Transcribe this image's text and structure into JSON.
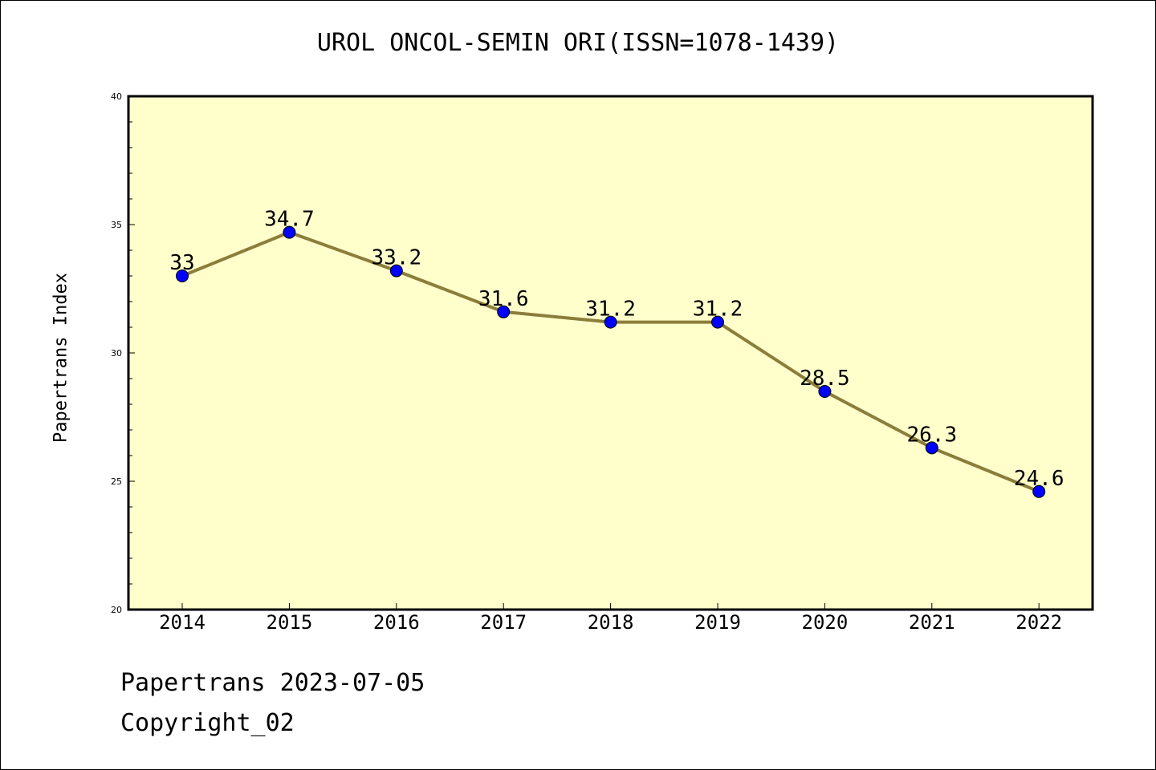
{
  "chart_data": {
    "type": "line",
    "title": "UROL ONCOL-SEMIN ORI(ISSN=1078-1439)",
    "xlabel": "",
    "ylabel": "Papertrans Index",
    "categories": [
      "2014",
      "2015",
      "2016",
      "2017",
      "2018",
      "2019",
      "2020",
      "2021",
      "2022"
    ],
    "values": [
      33,
      34.7,
      33.2,
      31.6,
      31.2,
      31.2,
      28.5,
      26.3,
      24.6
    ],
    "data_labels": [
      "33",
      "34.7",
      "33.2",
      "31.6",
      "31.2",
      "31.2",
      "28.5",
      "26.3",
      "24.6"
    ],
    "ylim": [
      20,
      40
    ],
    "yticks": [
      "20",
      "25",
      "30",
      "35",
      "40"
    ],
    "grid": false,
    "colors": {
      "plot_background": "#ffffcc",
      "line": "#8b7d3a",
      "marker": "#0000ff"
    }
  },
  "footer": {
    "line1": "Papertrans 2023-07-05",
    "line2": "Copyright_02"
  }
}
